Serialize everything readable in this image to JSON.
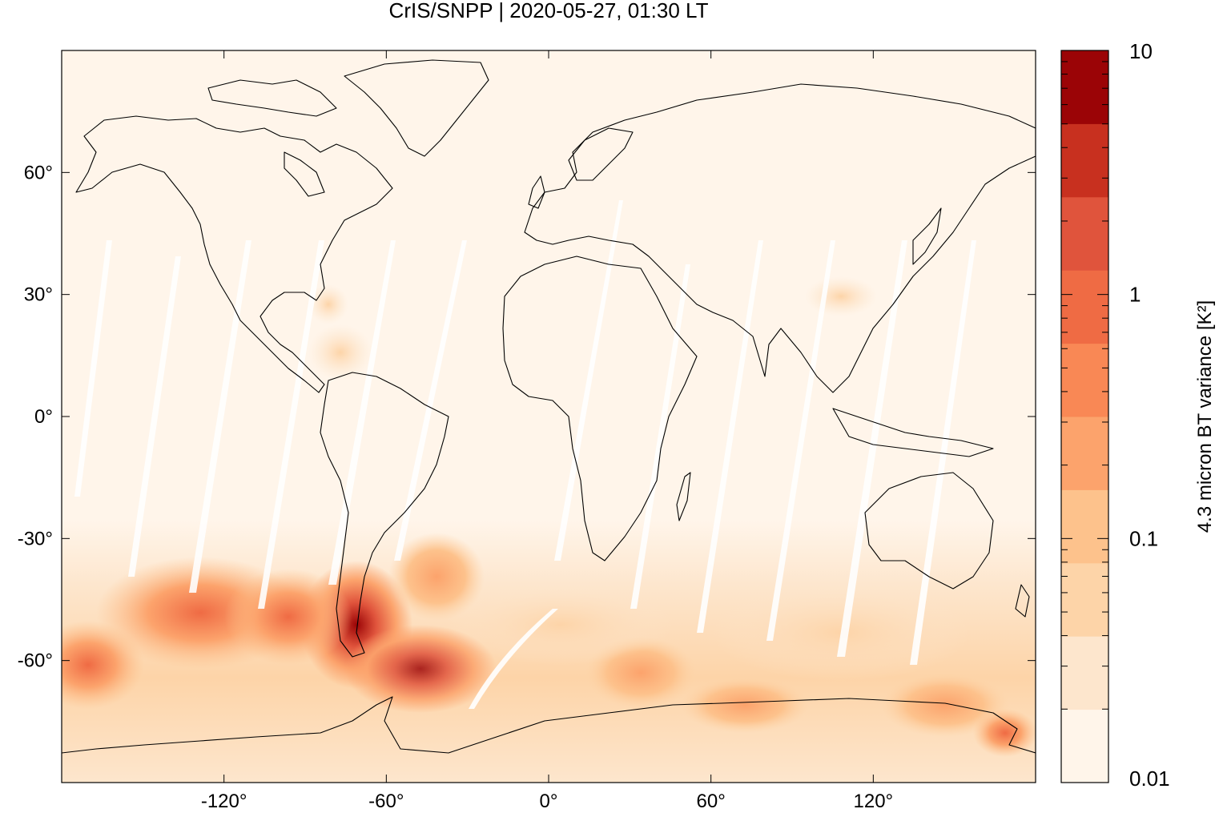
{
  "title": "CrIS/SNPP | 2020-05-27, 01:30 LT",
  "map": {
    "lon_range": [
      -180,
      180
    ],
    "lat_range": [
      -90,
      90
    ],
    "x_ticks": [
      {
        "value": -120,
        "label": "-120°"
      },
      {
        "value": -60,
        "label": "-60°"
      },
      {
        "value": 0,
        "label": "0°"
      },
      {
        "value": 60,
        "label": "60°"
      },
      {
        "value": 120,
        "label": "120°"
      }
    ],
    "y_ticks": [
      {
        "value": 60,
        "label": "60°"
      },
      {
        "value": 30,
        "label": "30°"
      },
      {
        "value": 0,
        "label": "0°"
      },
      {
        "value": -30,
        "label": "-30°"
      },
      {
        "value": -60,
        "label": "-60°"
      }
    ],
    "coastline_color": "#000000",
    "background_color": "#fff5ea"
  },
  "colorbar": {
    "label": "4.3 micron BT variance [K²]",
    "scale": "log",
    "range": [
      0.01,
      10
    ],
    "tick_labels": [
      {
        "value": 10,
        "label": "10"
      },
      {
        "value": 1,
        "label": "1"
      },
      {
        "value": 0.1,
        "label": "0.1"
      },
      {
        "value": 0.01,
        "label": "0.01"
      }
    ],
    "colors": [
      "#fff5ea",
      "#fde6cd",
      "#fdd4a8",
      "#fdc28c",
      "#fca36c",
      "#f98855",
      "#ef6b44",
      "#e0543c",
      "#c8301f",
      "#9b0406"
    ]
  }
}
